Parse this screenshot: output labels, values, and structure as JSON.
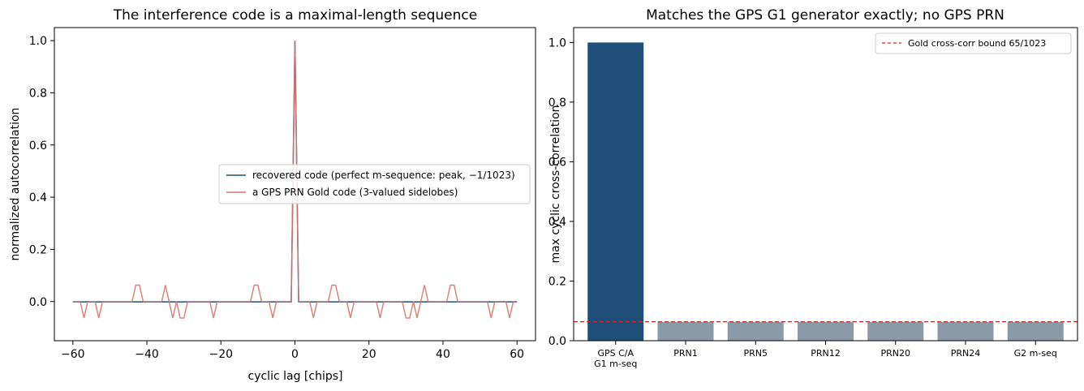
{
  "chart_data": [
    {
      "type": "line",
      "title": "The interference code is a maximal-length sequence",
      "xlabel": "cyclic lag [chips]",
      "ylabel": "normalized autocorrelation",
      "xlim": [
        -65,
        65
      ],
      "ylim": [
        -0.15,
        1.05
      ],
      "xticks": [
        -60,
        -40,
        -20,
        0,
        20,
        40,
        60
      ],
      "yticks": [
        0.0,
        0.2,
        0.4,
        0.6,
        0.8,
        1.0
      ],
      "xtick_labels": [
        "−60",
        "−40",
        "−20",
        "0",
        "20",
        "40",
        "60"
      ],
      "ytick_labels": [
        "0.0",
        "0.2",
        "0.4",
        "0.6",
        "0.8",
        "1.0"
      ],
      "legend_position": "center-right",
      "grid": false,
      "series": [
        {
          "name": "recovered code (perfect m-sequence: peak, −1/1023)",
          "color": "#1f4e79",
          "x": [
            -60,
            -1,
            0,
            1,
            60
          ],
          "y": [
            -0.001,
            -0.001,
            1.0,
            -0.001,
            -0.001
          ]
        },
        {
          "name": "a GPS PRN Gold code (3-valued sidelobes)",
          "color": "#d9766b",
          "x": [
            -60,
            -58,
            -57,
            -56,
            -54,
            -53,
            -52,
            -44,
            -43,
            -42,
            -41,
            -36,
            -35,
            -34,
            -33,
            -32,
            -31,
            -30,
            -29,
            -23,
            -22,
            -21,
            -13,
            -12,
            -11,
            -10,
            -9,
            -7,
            -6,
            -5,
            -1,
            0,
            1,
            4,
            5,
            6,
            7,
            8,
            9,
            10,
            11,
            12,
            14,
            15,
            16,
            22,
            23,
            24,
            29,
            30,
            31,
            32,
            33,
            34,
            35,
            36,
            37,
            41,
            42,
            43,
            44,
            45,
            52,
            53,
            54,
            57,
            58,
            59,
            60
          ],
          "y": [
            0,
            0,
            -0.063,
            0,
            0,
            -0.063,
            0,
            0,
            0.063,
            0.063,
            0,
            0,
            0.063,
            0,
            -0.063,
            0,
            -0.063,
            -0.063,
            0,
            0,
            -0.063,
            0,
            0,
            0,
            0.063,
            0.063,
            0,
            0,
            -0.063,
            0,
            0,
            1.0,
            0,
            0,
            -0.063,
            0,
            0,
            0,
            0,
            0.063,
            0.063,
            0,
            0,
            -0.063,
            0,
            0,
            -0.063,
            0,
            0,
            -0.063,
            -0.063,
            0,
            -0.063,
            0,
            0.063,
            0,
            0,
            0,
            0.063,
            0.063,
            0,
            0,
            0,
            -0.063,
            0,
            0,
            -0.063,
            0,
            0
          ]
        }
      ]
    },
    {
      "type": "bar",
      "title": "Matches the GPS G1 generator exactly; no GPS PRN",
      "xlabel": "",
      "ylabel": "max cyclic cross-correlation",
      "ylim": [
        0,
        1.05
      ],
      "yticks": [
        0.0,
        0.2,
        0.4,
        0.6,
        0.8,
        1.0
      ],
      "ytick_labels": [
        "0.0",
        "0.2",
        "0.4",
        "0.6",
        "0.8",
        "1.0"
      ],
      "categories": [
        [
          "GPS C/A",
          "G1 m-seq"
        ],
        [
          "PRN1"
        ],
        [
          "PRN5"
        ],
        [
          "PRN12"
        ],
        [
          "PRN20"
        ],
        [
          "PRN24"
        ],
        [
          "G2 m-seq"
        ]
      ],
      "values": [
        1.0,
        0.0635,
        0.0635,
        0.0635,
        0.0635,
        0.0635,
        0.0635
      ],
      "bar_colors": [
        "#1f4e79",
        "#8c9aa8",
        "#8c9aa8",
        "#8c9aa8",
        "#8c9aa8",
        "#8c9aa8",
        "#8c9aa8"
      ],
      "reference_line": {
        "label": "Gold cross-corr bound 65/1023",
        "value": 0.0635,
        "color": "#d62728",
        "style": "dashed"
      },
      "legend_position": "top-right",
      "grid": false
    }
  ]
}
